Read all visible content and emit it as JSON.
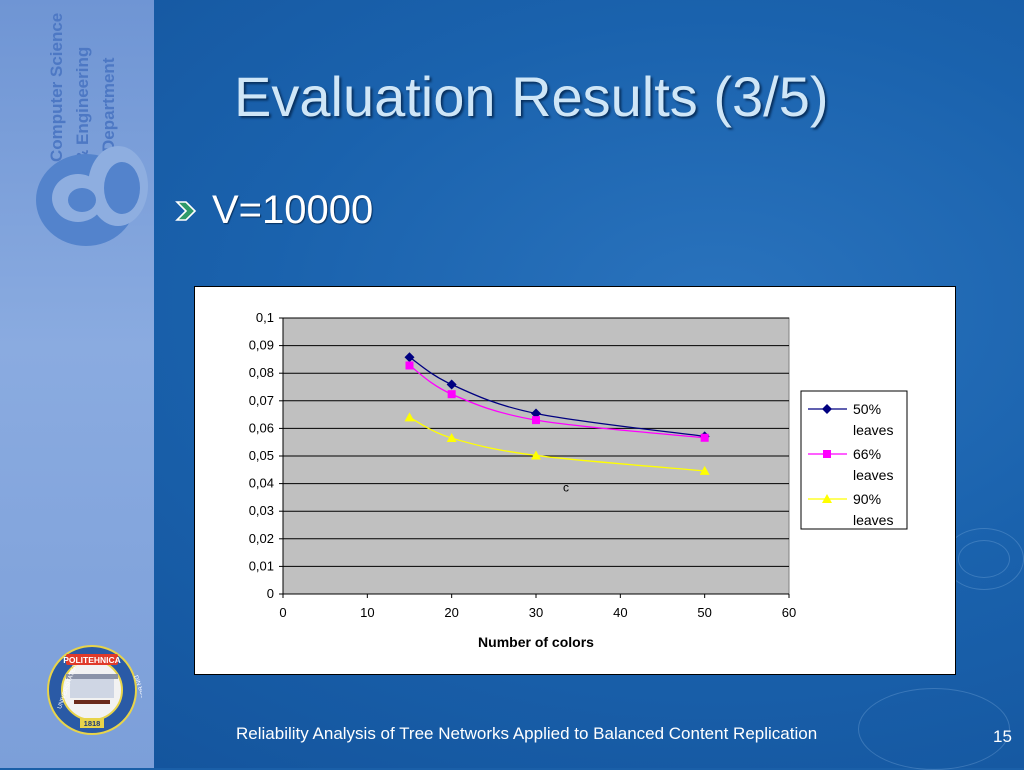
{
  "slide": {
    "title": "Evaluation Results (3/5)",
    "bullet": "V=10000",
    "footer": "Reliability Analysis of Tree Networks Applied to Balanced Content Replication",
    "page_number": "15"
  },
  "sidebar": {
    "dept_line1": "Computer Science",
    "dept_line2": "& Engineering",
    "dept_line3": "Department",
    "seal_top": "POLITEHNICA",
    "seal_left": "UNIVERSITATEA",
    "seal_right": "DIN BUCUREŞTI",
    "seal_year": "1818"
  },
  "colors": {
    "plot_bg": "#c0c0c0",
    "series_50": "#000080",
    "series_66": "#ff00ff",
    "series_90": "#ffff00"
  },
  "chart_data": {
    "type": "line",
    "title": "",
    "xlabel": "Number of colors",
    "ylabel": "",
    "xlim": [
      0,
      60
    ],
    "ylim": [
      0,
      0.1
    ],
    "x_ticks": [
      "0",
      "10",
      "20",
      "30",
      "40",
      "50",
      "60"
    ],
    "y_ticks": [
      "0",
      "0,01",
      "0,02",
      "0,03",
      "0,04",
      "0,05",
      "0,06",
      "0,07",
      "0,08",
      "0,09",
      "0,1"
    ],
    "grid": "horizontal",
    "legend_position": "right",
    "annotation": "c",
    "series": [
      {
        "name": "50% leaves",
        "marker": "diamond",
        "x": [
          15,
          20,
          30,
          50
        ],
        "y": [
          0.0858,
          0.0759,
          0.0654,
          0.0571
        ]
      },
      {
        "name": "66% leaves",
        "marker": "square",
        "x": [
          15,
          20,
          30,
          50
        ],
        "y": [
          0.0828,
          0.0724,
          0.063,
          0.0566
        ]
      },
      {
        "name": "90% leaves",
        "marker": "triangle",
        "x": [
          15,
          20,
          30,
          50
        ],
        "y": [
          0.064,
          0.0565,
          0.0502,
          0.0446
        ]
      }
    ]
  }
}
